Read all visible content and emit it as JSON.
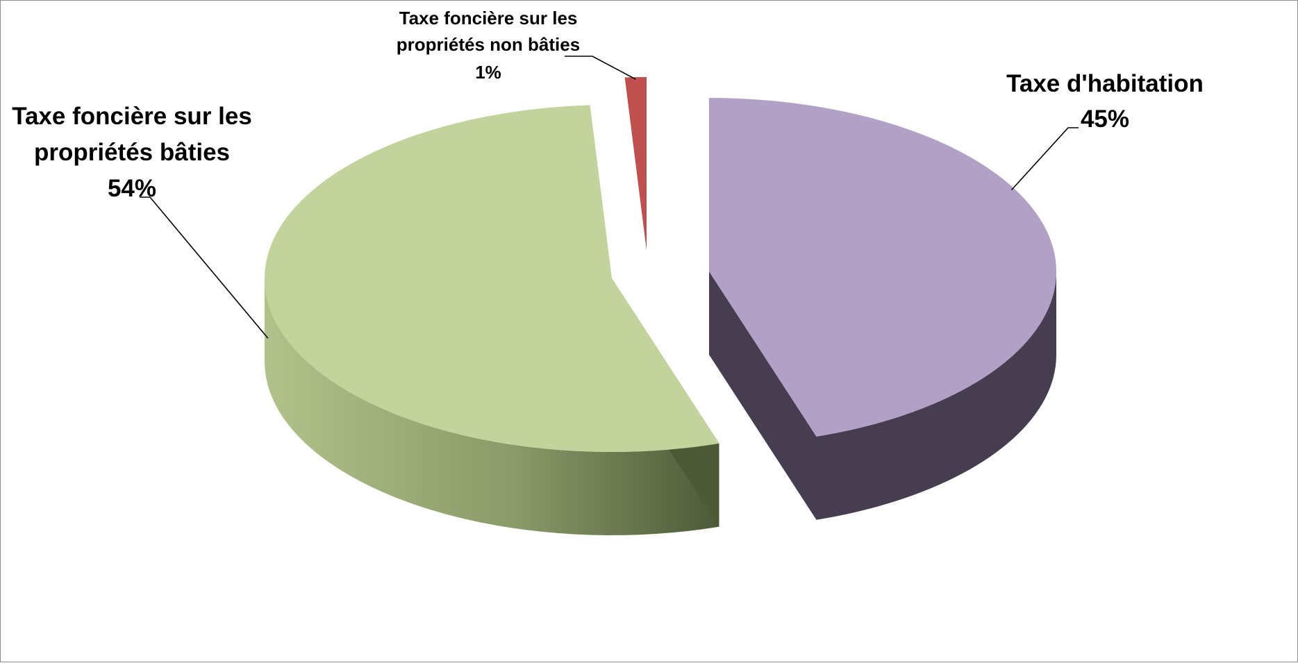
{
  "chart_data": {
    "type": "pie",
    "style": "3d-exploded",
    "title": "",
    "slices": [
      {
        "label_line1": "Taxe d'habitation",
        "label_line2": "",
        "percent_label": "45%",
        "value": 45,
        "color": "#b2a1c7",
        "side_color": "#463d50",
        "label_size": "large"
      },
      {
        "label_line1": "Taxe foncière sur les",
        "label_line2": "propriétés bâties",
        "percent_label": "54%",
        "value": 54,
        "color": "#c2d49b",
        "side_color": "#95a674",
        "side_color_dark": "#4d5a38",
        "label_size": "large"
      },
      {
        "label_line1": "Taxe foncière sur les",
        "label_line2": "propriétés non bâties",
        "percent_label": "1%",
        "value": 1,
        "color": "#c0504d",
        "side_color": "#632523",
        "label_size": "small"
      }
    ],
    "legend": "none",
    "data_labels": "category-and-percent"
  }
}
